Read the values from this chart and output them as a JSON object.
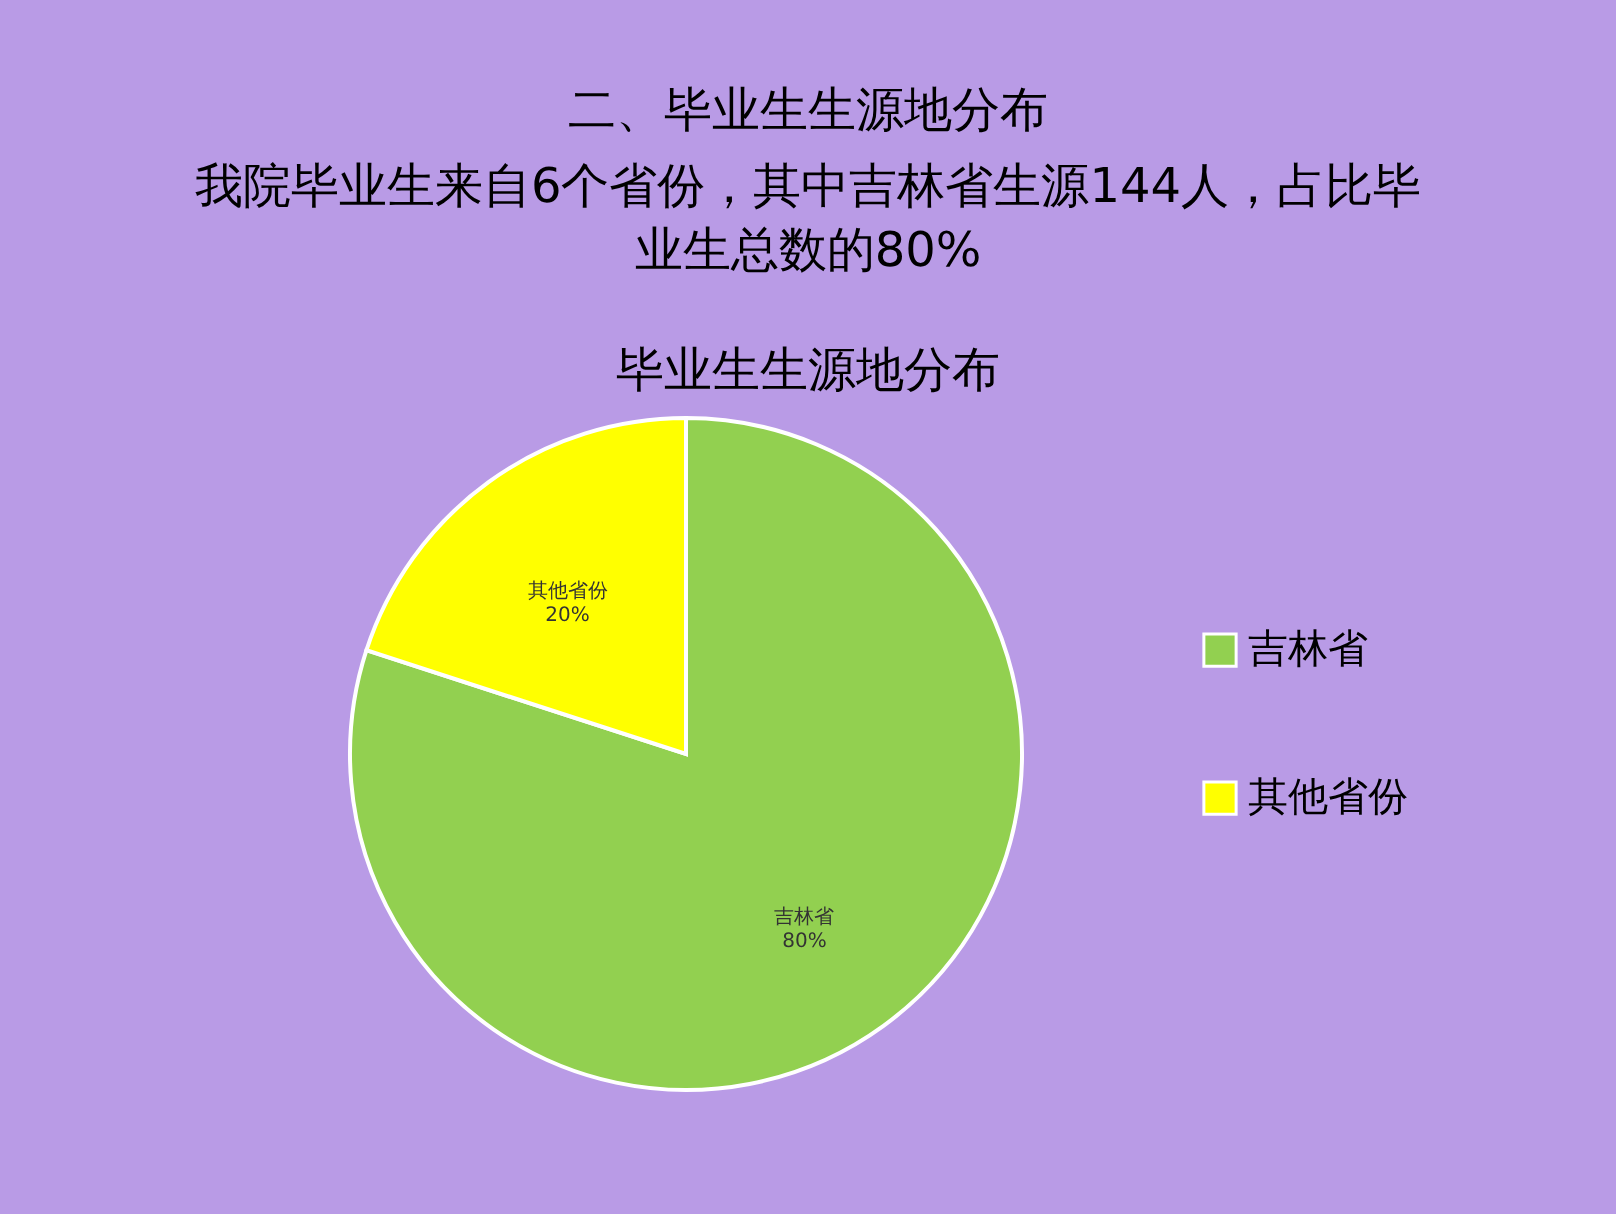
{
  "chart_data": {
    "type": "pie",
    "title": "毕业生生源地分布",
    "annotations": [
      "二、毕业生生源地分布",
      "我院毕业生来自6个省份，其中吉林省生源144人，占比毕",
      "业生总数的80%"
    ],
    "categories": [
      "吉林省",
      "其他省份"
    ],
    "values": [
      80,
      20
    ],
    "colors": [
      "#92d050",
      "#ffff00"
    ],
    "value_labels": [
      "80%",
      "20%"
    ],
    "legend": "right"
  }
}
